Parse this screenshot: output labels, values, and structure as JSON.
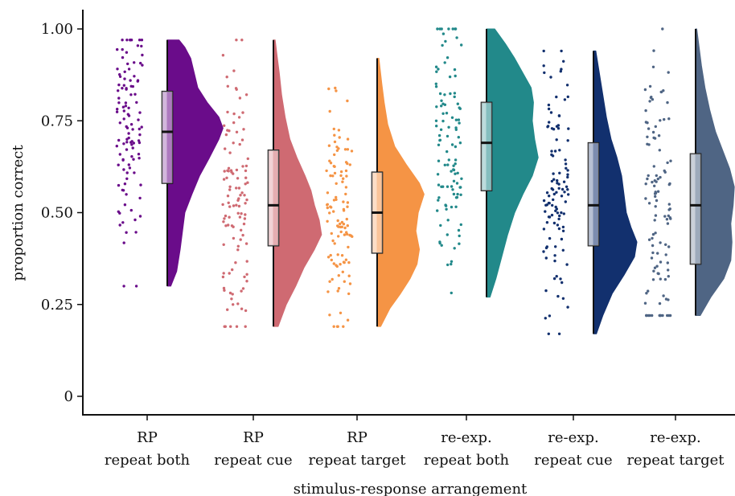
{
  "chart_data": {
    "type": "raincloud",
    "title": "",
    "xlabel": "stimulus-response arrangement",
    "ylabel": "proportion correct",
    "ylim": [
      0,
      1.03
    ],
    "yticks": [
      0,
      0.25,
      0.5,
      0.75,
      1.0
    ],
    "ytick_labels": [
      "0",
      "0.25",
      "0.50",
      "0.75",
      "1.00"
    ],
    "grid": false,
    "legend": "none",
    "categories": [
      [
        "RP",
        "repeat both"
      ],
      [
        "RP",
        "repeat cue"
      ],
      [
        "RP",
        "repeat target"
      ],
      [
        "re-exp.",
        "repeat both"
      ],
      [
        "re-exp.",
        "repeat cue"
      ],
      [
        "re-exp.",
        "repeat target"
      ]
    ],
    "groups": [
      {
        "color": "#6a0c8a",
        "min": 0.3,
        "q1": 0.58,
        "median": 0.72,
        "q3": 0.83,
        "max": 0.97,
        "density": [
          [
            0.3,
            0.06
          ],
          [
            0.34,
            0.16
          ],
          [
            0.4,
            0.22
          ],
          [
            0.45,
            0.26
          ],
          [
            0.5,
            0.3
          ],
          [
            0.55,
            0.42
          ],
          [
            0.6,
            0.55
          ],
          [
            0.65,
            0.72
          ],
          [
            0.7,
            0.88
          ],
          [
            0.73,
            0.95
          ],
          [
            0.76,
            0.88
          ],
          [
            0.8,
            0.68
          ],
          [
            0.84,
            0.52
          ],
          [
            0.88,
            0.46
          ],
          [
            0.92,
            0.4
          ],
          [
            0.95,
            0.3
          ],
          [
            0.97,
            0.2
          ]
        ]
      },
      {
        "color": "#cf6a72",
        "min": 0.19,
        "q1": 0.41,
        "median": 0.52,
        "q3": 0.67,
        "max": 0.97,
        "density": [
          [
            0.19,
            0.08
          ],
          [
            0.25,
            0.22
          ],
          [
            0.3,
            0.38
          ],
          [
            0.35,
            0.52
          ],
          [
            0.4,
            0.7
          ],
          [
            0.44,
            0.82
          ],
          [
            0.48,
            0.78
          ],
          [
            0.52,
            0.7
          ],
          [
            0.56,
            0.64
          ],
          [
            0.6,
            0.54
          ],
          [
            0.65,
            0.4
          ],
          [
            0.7,
            0.28
          ],
          [
            0.76,
            0.2
          ],
          [
            0.82,
            0.14
          ],
          [
            0.88,
            0.1
          ],
          [
            0.93,
            0.06
          ],
          [
            0.97,
            0.03
          ]
        ]
      },
      {
        "color": "#f59445",
        "min": 0.19,
        "q1": 0.39,
        "median": 0.5,
        "q3": 0.61,
        "max": 0.92,
        "density": [
          [
            0.19,
            0.06
          ],
          [
            0.24,
            0.22
          ],
          [
            0.28,
            0.4
          ],
          [
            0.32,
            0.56
          ],
          [
            0.36,
            0.68
          ],
          [
            0.4,
            0.72
          ],
          [
            0.45,
            0.66
          ],
          [
            0.5,
            0.7
          ],
          [
            0.55,
            0.8
          ],
          [
            0.58,
            0.72
          ],
          [
            0.63,
            0.5
          ],
          [
            0.68,
            0.3
          ],
          [
            0.74,
            0.18
          ],
          [
            0.8,
            0.12
          ],
          [
            0.85,
            0.08
          ],
          [
            0.92,
            0.03
          ]
        ]
      },
      {
        "color": "#22898a",
        "min": 0.27,
        "q1": 0.56,
        "median": 0.69,
        "q3": 0.8,
        "max": 1.0,
        "density": [
          [
            0.27,
            0.06
          ],
          [
            0.32,
            0.16
          ],
          [
            0.38,
            0.26
          ],
          [
            0.44,
            0.36
          ],
          [
            0.5,
            0.48
          ],
          [
            0.55,
            0.62
          ],
          [
            0.6,
            0.78
          ],
          [
            0.65,
            0.88
          ],
          [
            0.7,
            0.82
          ],
          [
            0.75,
            0.78
          ],
          [
            0.8,
            0.8
          ],
          [
            0.84,
            0.76
          ],
          [
            0.88,
            0.62
          ],
          [
            0.92,
            0.48
          ],
          [
            0.96,
            0.32
          ],
          [
            1.0,
            0.14
          ]
        ]
      },
      {
        "color": "#12306e",
        "min": 0.17,
        "q1": 0.41,
        "median": 0.52,
        "q3": 0.69,
        "max": 0.94,
        "density": [
          [
            0.17,
            0.05
          ],
          [
            0.22,
            0.16
          ],
          [
            0.28,
            0.32
          ],
          [
            0.33,
            0.52
          ],
          [
            0.38,
            0.7
          ],
          [
            0.42,
            0.74
          ],
          [
            0.46,
            0.64
          ],
          [
            0.5,
            0.56
          ],
          [
            0.55,
            0.52
          ],
          [
            0.6,
            0.48
          ],
          [
            0.65,
            0.4
          ],
          [
            0.7,
            0.3
          ],
          [
            0.76,
            0.22
          ],
          [
            0.82,
            0.16
          ],
          [
            0.88,
            0.1
          ],
          [
            0.94,
            0.04
          ]
        ]
      },
      {
        "color": "#4f6584",
        "min": 0.22,
        "q1": 0.36,
        "median": 0.52,
        "q3": 0.66,
        "max": 1.0,
        "density": [
          [
            0.22,
            0.08
          ],
          [
            0.27,
            0.26
          ],
          [
            0.32,
            0.48
          ],
          [
            0.37,
            0.6
          ],
          [
            0.42,
            0.62
          ],
          [
            0.47,
            0.6
          ],
          [
            0.52,
            0.64
          ],
          [
            0.57,
            0.66
          ],
          [
            0.62,
            0.58
          ],
          [
            0.67,
            0.46
          ],
          [
            0.72,
            0.34
          ],
          [
            0.78,
            0.24
          ],
          [
            0.84,
            0.16
          ],
          [
            0.9,
            0.1
          ],
          [
            0.95,
            0.06
          ],
          [
            1.0,
            0.02
          ]
        ]
      }
    ]
  }
}
